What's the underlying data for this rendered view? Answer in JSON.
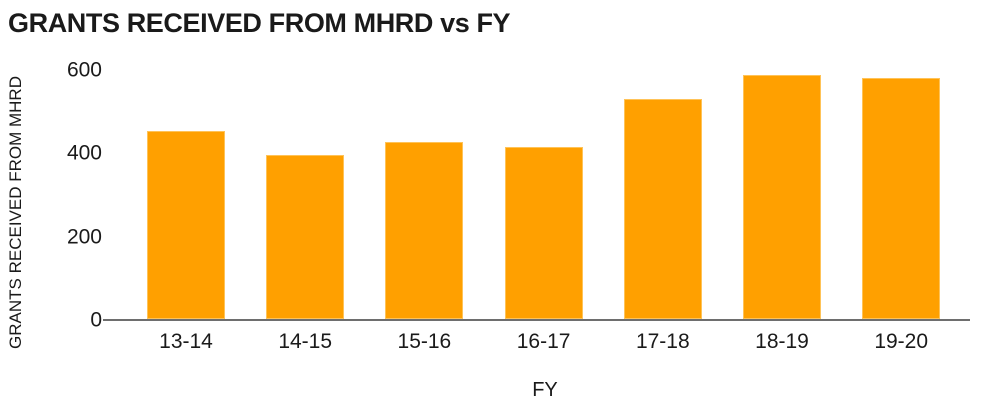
{
  "title": "GRANTS RECEIVED FROM MHRD vs FY",
  "colors": {
    "bar": "#FFA000",
    "axis_line": "#6E6E6E",
    "text": "#1A1A1A",
    "background": "#FFFFFF"
  },
  "chart_data": {
    "type": "bar",
    "title": "GRANTS RECEIVED FROM MHRD vs FY",
    "xlabel": "FY",
    "ylabel": "GRANTS RECEIVED FROM MHRD",
    "categories": [
      "13-14",
      "14-15",
      "15-16",
      "16-17",
      "17-18",
      "18-19",
      "19-20"
    ],
    "values": [
      450,
      394,
      424,
      411,
      527,
      585,
      577
    ],
    "yticks": [
      0,
      200,
      400,
      600
    ],
    "ylim": [
      0,
      600
    ],
    "grid": false,
    "legend": false,
    "bar_color": "#FFA000"
  }
}
